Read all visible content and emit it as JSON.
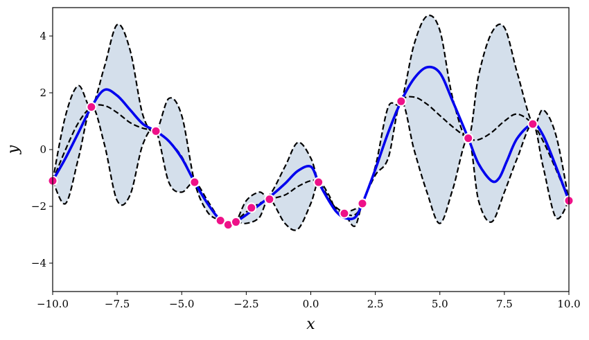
{
  "chart_data": {
    "type": "line",
    "title": "",
    "xlabel": "x",
    "ylabel": "y",
    "xlim": [
      -10,
      10
    ],
    "ylim": [
      -5,
      5
    ],
    "xticks": [
      -10,
      -7.5,
      -5,
      -2.5,
      0,
      2.5,
      5,
      7.5,
      10
    ],
    "xtick_labels": [
      "−10.0",
      "−7.5",
      "−5.0",
      "−2.5",
      "0.0",
      "2.5",
      "5.0",
      "7.5",
      "10.0"
    ],
    "yticks": [
      -4,
      -2,
      0,
      2,
      4
    ],
    "ytick_labels": [
      "−4",
      "−2",
      "0",
      "2",
      "4"
    ],
    "grid": false,
    "colors": {
      "sample_line": "#0000ee",
      "band_fill": "#d4dfeb",
      "dashed": "#000000",
      "points": "#ee1188",
      "point_edge": "#ffffff"
    },
    "observed_points": {
      "x": [
        -10.0,
        -8.5,
        -6.0,
        -4.5,
        -3.5,
        -3.2,
        -2.9,
        -2.3,
        -1.6,
        0.3,
        1.3,
        2.0,
        3.5,
        6.1,
        8.6,
        10.0
      ],
      "y": [
        -1.1,
        1.5,
        0.65,
        -1.15,
        -2.5,
        -2.65,
        -2.55,
        -2.05,
        -1.75,
        -1.15,
        -2.25,
        -1.9,
        1.7,
        0.4,
        0.9,
        -1.8
      ]
    },
    "series": [
      {
        "style": "solid-blue",
        "x": [
          -10.0,
          -9.5,
          -9.0,
          -8.5,
          -8.0,
          -7.5,
          -7.0,
          -6.5,
          -6.0,
          -5.5,
          -5.0,
          -4.5,
          -4.0,
          -3.5,
          -3.2,
          -3.0,
          -2.5,
          -2.0,
          -1.5,
          -1.0,
          -0.5,
          0.0,
          0.3,
          0.7,
          1.0,
          1.3,
          1.7,
          2.0,
          2.5,
          3.0,
          3.5,
          4.0,
          4.5,
          5.0,
          5.5,
          6.1,
          6.5,
          7.0,
          7.3,
          7.6,
          8.0,
          8.6,
          9.0,
          9.5,
          10.0
        ],
        "y": [
          -1.1,
          -0.3,
          0.6,
          1.5,
          2.1,
          1.9,
          1.4,
          0.9,
          0.65,
          0.3,
          -0.3,
          -1.15,
          -1.9,
          -2.5,
          -2.65,
          -2.6,
          -2.3,
          -1.95,
          -1.6,
          -1.2,
          -0.75,
          -0.6,
          -1.15,
          -1.8,
          -2.2,
          -2.4,
          -2.4,
          -1.9,
          -0.7,
          0.6,
          1.7,
          2.5,
          2.9,
          2.7,
          1.7,
          0.4,
          -0.5,
          -1.1,
          -1.0,
          -0.4,
          0.4,
          0.9,
          0.5,
          -0.6,
          -1.8
        ]
      },
      {
        "style": "dashed-mean",
        "x": [
          -10.0,
          -9.5,
          -9.0,
          -8.5,
          -8.0,
          -7.5,
          -7.0,
          -6.5,
          -6.0,
          -5.5,
          -5.0,
          -4.5,
          -4.0,
          -3.5,
          -3.2,
          -3.0,
          -2.5,
          -2.0,
          -1.6,
          -1.0,
          -0.5,
          0.0,
          0.3,
          0.7,
          1.0,
          1.3,
          1.7,
          2.0,
          2.5,
          3.0,
          3.5,
          4.0,
          4.5,
          5.0,
          5.5,
          6.1,
          6.5,
          7.0,
          7.5,
          8.0,
          8.6,
          9.0,
          9.5,
          10.0
        ],
        "y": [
          -1.1,
          0.0,
          0.95,
          1.5,
          1.55,
          1.3,
          0.95,
          0.75,
          0.65,
          0.3,
          -0.25,
          -1.15,
          -1.9,
          -2.5,
          -2.65,
          -2.6,
          -2.2,
          -1.9,
          -1.75,
          -1.6,
          -1.3,
          -1.1,
          -1.15,
          -1.7,
          -2.1,
          -2.25,
          -2.3,
          -1.9,
          -0.7,
          0.6,
          1.7,
          1.85,
          1.6,
          1.2,
          0.8,
          0.4,
          0.35,
          0.6,
          1.0,
          1.25,
          0.9,
          0.3,
          -0.7,
          -1.8
        ]
      },
      {
        "style": "dashed-upper",
        "x": [
          -10.0,
          -9.5,
          -9.0,
          -8.5,
          -8.0,
          -7.5,
          -7.0,
          -6.5,
          -6.0,
          -5.5,
          -5.0,
          -4.5,
          -4.0,
          -3.5,
          -3.2,
          -2.9,
          -2.5,
          -2.0,
          -1.6,
          -1.0,
          -0.5,
          0.0,
          0.3,
          0.7,
          1.0,
          1.3,
          1.7,
          2.0,
          2.5,
          3.0,
          3.5,
          4.0,
          4.5,
          5.0,
          5.5,
          6.1,
          6.5,
          7.0,
          7.5,
          8.0,
          8.6,
          9.0,
          9.5,
          10.0
        ],
        "y": [
          -1.1,
          1.2,
          2.25,
          1.5,
          2.9,
          4.4,
          3.5,
          1.2,
          0.65,
          1.8,
          1.2,
          -1.15,
          -2.2,
          -2.5,
          -2.65,
          -2.55,
          -1.8,
          -1.5,
          -1.6,
          -0.6,
          0.25,
          -0.3,
          -1.15,
          -1.8,
          -2.05,
          -2.2,
          -2.1,
          -1.9,
          -0.6,
          1.5,
          1.7,
          3.7,
          4.7,
          4.2,
          1.8,
          0.4,
          2.6,
          4.1,
          4.3,
          2.7,
          0.9,
          1.4,
          0.5,
          -1.8
        ]
      },
      {
        "style": "dashed-lower",
        "x": [
          -10.0,
          -9.5,
          -9.0,
          -8.5,
          -8.0,
          -7.5,
          -7.0,
          -6.5,
          -6.0,
          -5.5,
          -5.0,
          -4.5,
          -4.0,
          -3.5,
          -3.2,
          -2.9,
          -2.5,
          -2.0,
          -1.6,
          -1.0,
          -0.5,
          0.0,
          0.3,
          0.7,
          1.0,
          1.3,
          1.7,
          2.0,
          2.5,
          3.0,
          3.5,
          4.0,
          4.5,
          5.0,
          5.5,
          6.1,
          6.5,
          7.0,
          7.5,
          8.0,
          8.6,
          9.0,
          9.5,
          10.0
        ],
        "y": [
          -1.1,
          -1.9,
          -0.3,
          1.5,
          0.2,
          -1.8,
          -1.6,
          0.2,
          0.65,
          -1.15,
          -1.5,
          -1.15,
          -1.8,
          -2.5,
          -2.65,
          -2.55,
          -2.6,
          -2.4,
          -1.75,
          -2.6,
          -2.8,
          -1.9,
          -1.15,
          -1.6,
          -2.2,
          -2.25,
          -2.7,
          -1.9,
          -0.9,
          -0.3,
          1.7,
          0.0,
          -1.5,
          -2.6,
          -1.4,
          0.4,
          -1.8,
          -2.55,
          -1.5,
          -0.3,
          0.9,
          -0.6,
          -2.4,
          -1.8
        ]
      }
    ]
  }
}
